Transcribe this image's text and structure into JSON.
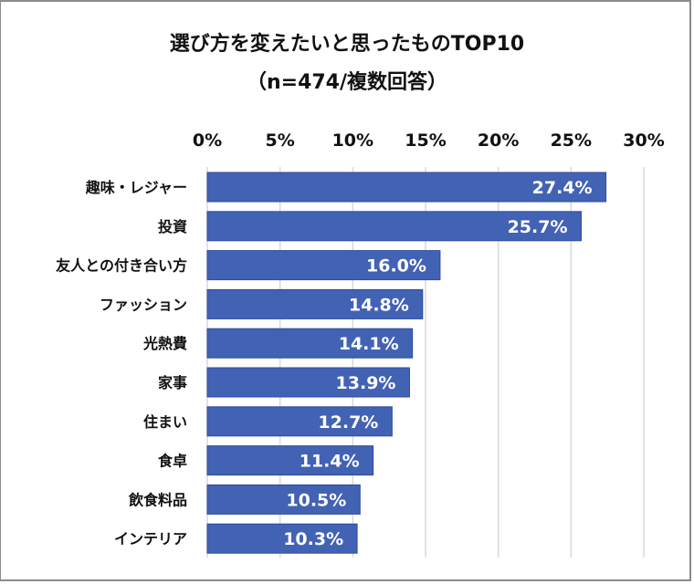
{
  "chart_data": {
    "type": "bar",
    "orientation": "horizontal",
    "title": "選び方を変えたいと思ったものTOP10",
    "subtitle": "（n=474/複数回答）",
    "categories": [
      "趣味・レジャー",
      "投資",
      "友人との付き合い方",
      "ファッション",
      "光熱費",
      "家事",
      "住まい",
      "食卓",
      "飲食料品",
      "インテリア"
    ],
    "values": [
      27.4,
      25.7,
      16.0,
      14.8,
      14.1,
      13.9,
      12.7,
      11.4,
      10.5,
      10.3
    ],
    "data_labels": [
      "27.4%",
      "25.7%",
      "16.0%",
      "14.8%",
      "14.1%",
      "13.9%",
      "12.7%",
      "11.4%",
      "10.5%",
      "10.3%"
    ],
    "xticks": [
      0,
      5,
      10,
      15,
      20,
      25,
      30
    ],
    "xtick_labels": [
      "0%",
      "5%",
      "10%",
      "15%",
      "20%",
      "25%",
      "30%"
    ],
    "xlim": [
      0,
      30
    ],
    "xlabel": "",
    "ylabel": "",
    "grid": true,
    "axis_position": "top",
    "legend": "none",
    "bar_color": "#4262B4",
    "bar_edge_color": "#2F4C9F",
    "grid_color": "#D9D9D9",
    "label_color": "#FFFFFF"
  }
}
